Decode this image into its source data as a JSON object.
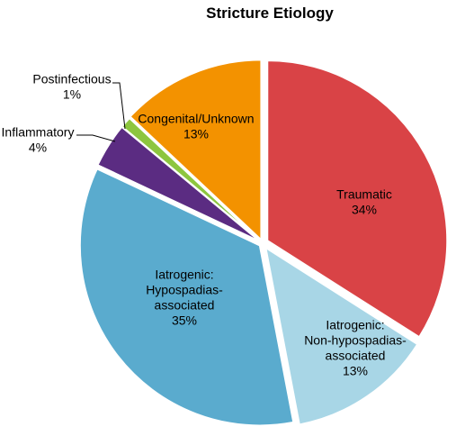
{
  "chart_data": {
    "type": "pie",
    "title": "Stricture Etiology",
    "slices": [
      {
        "label_lines": [
          "Traumatic",
          "34%"
        ],
        "value": 34,
        "color": "#d94346"
      },
      {
        "label_lines": [
          "Iatrogenic:",
          "Non-hypospadias-",
          "associated",
          "13%"
        ],
        "value": 13,
        "color": "#a8d6e6"
      },
      {
        "label_lines": [
          "Iatrogenic:",
          "Hypospadias-",
          "associated",
          "35%"
        ],
        "value": 35,
        "color": "#5aabce"
      },
      {
        "label_lines": [
          "Inflammatory",
          "4%"
        ],
        "value": 4,
        "color": "#5b2c82"
      },
      {
        "label_lines": [
          "Postinfectious",
          "1%"
        ],
        "value": 1,
        "color": "#8dc63f"
      },
      {
        "label_lines": [
          "Congenital/Unknown",
          "13%"
        ],
        "value": 13,
        "color": "#f39200"
      }
    ]
  }
}
